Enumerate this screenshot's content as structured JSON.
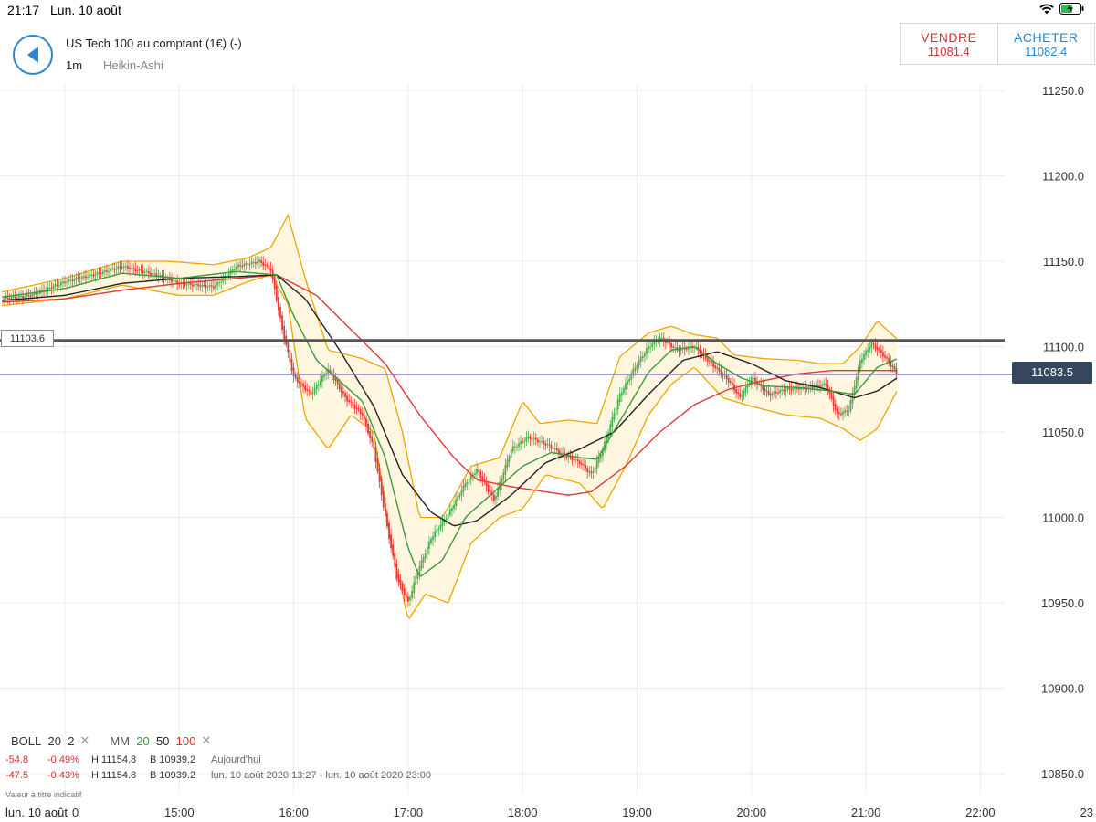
{
  "status": {
    "time": "21:17",
    "date": "Lun. 10 août",
    "icons": [
      "wifi-icon",
      "battery-charging-icon"
    ]
  },
  "header": {
    "back_icon": "triangle-left-icon",
    "instrument": "US Tech 100 au comptant (1€) (-)",
    "timeframe": "1m",
    "chart_type": "Heikin-Ashi"
  },
  "trade": {
    "sell_label": "VENDRE",
    "sell_price": "11081.4",
    "buy_label": "ACHETER",
    "buy_price": "11082.4"
  },
  "legend": {
    "boll_label": "BOLL",
    "boll_period": "20",
    "boll_dev": "2",
    "mm_label": "MM",
    "mm_20": "20",
    "mm_50": "50",
    "mm_100": "100",
    "remove_symbol": "✕"
  },
  "stats": [
    {
      "change": "-54.8",
      "pct": "-0.49%",
      "high": "H 11154.8",
      "low": "B 10939.2",
      "period": "Aujourd'hui"
    },
    {
      "change": "-47.5",
      "pct": "-0.43%",
      "high": "H 11154.8",
      "low": "B 10939.2",
      "period": "lun. 10 août 2020 13:27 - lun. 10 août 2020 23:00"
    }
  ],
  "disclaimer": "Valeur à titre indicatif",
  "date_label": "lun. 10 août",
  "colors": {
    "up": "#4caf50",
    "down": "#e53935",
    "mm20": "#3c9a3c",
    "mm50": "#222222",
    "mm100": "#e03a3a",
    "bollinger": "#f0a500",
    "band_fill": "#fff6e0",
    "level_line": "#555555",
    "current_line": "#8f8fc0",
    "price_tag": "#36465d",
    "accent": "#2a86d1"
  },
  "chart_data": {
    "type": "candlestick",
    "candle_style": "Heikin-Ashi",
    "x_ticks": [
      "0",
      "15:00",
      "16:00",
      "17:00",
      "18:00",
      "19:00",
      "20:00",
      "21:00",
      "22:00",
      "23"
    ],
    "y_ticks": [
      "11250.0",
      "11200.0",
      "11150.0",
      "11100.0",
      "11050.0",
      "11000.0",
      "10950.0",
      "10900.0",
      "10850.0"
    ],
    "ylim": [
      10835,
      11275
    ],
    "x_range_hours": [
      13.45,
      23.0
    ],
    "level_line": {
      "value": 11103.6,
      "label": "11103.6"
    },
    "current_price": {
      "value": 11083.5,
      "label": "11083.5"
    },
    "price_path": [
      [
        13.45,
        11128
      ],
      [
        13.7,
        11130
      ],
      [
        14.0,
        11138
      ],
      [
        14.3,
        11143
      ],
      [
        14.5,
        11147
      ],
      [
        14.8,
        11142
      ],
      [
        15.0,
        11137
      ],
      [
        15.3,
        11135
      ],
      [
        15.5,
        11147
      ],
      [
        15.7,
        11150
      ],
      [
        15.8,
        11145
      ],
      [
        15.9,
        11110
      ],
      [
        16.0,
        11082
      ],
      [
        16.15,
        11072
      ],
      [
        16.3,
        11087
      ],
      [
        16.45,
        11070
      ],
      [
        16.6,
        11060
      ],
      [
        16.7,
        11040
      ],
      [
        16.8,
        11000
      ],
      [
        16.9,
        10965
      ],
      [
        17.0,
        10950
      ],
      [
        17.08,
        10968
      ],
      [
        17.2,
        10988
      ],
      [
        17.35,
        11002
      ],
      [
        17.5,
        11020
      ],
      [
        17.6,
        11028
      ],
      [
        17.75,
        11010
      ],
      [
        17.9,
        11040
      ],
      [
        18.05,
        11047
      ],
      [
        18.2,
        11043
      ],
      [
        18.35,
        11037
      ],
      [
        18.5,
        11032
      ],
      [
        18.6,
        11025
      ],
      [
        18.7,
        11040
      ],
      [
        18.85,
        11072
      ],
      [
        19.0,
        11090
      ],
      [
        19.1,
        11100
      ],
      [
        19.2,
        11105
      ],
      [
        19.35,
        11098
      ],
      [
        19.5,
        11100
      ],
      [
        19.65,
        11090
      ],
      [
        19.8,
        11080
      ],
      [
        19.9,
        11070
      ],
      [
        20.0,
        11082
      ],
      [
        20.15,
        11072
      ],
      [
        20.3,
        11075
      ],
      [
        20.5,
        11076
      ],
      [
        20.65,
        11078
      ],
      [
        20.75,
        11060
      ],
      [
        20.85,
        11063
      ],
      [
        20.95,
        11092
      ],
      [
        21.05,
        11102
      ],
      [
        21.15,
        11095
      ],
      [
        21.28,
        11083.5
      ]
    ],
    "mm20_path": [
      [
        13.45,
        11129
      ],
      [
        14.0,
        11134
      ],
      [
        14.5,
        11143
      ],
      [
        15.0,
        11140
      ],
      [
        15.5,
        11144
      ],
      [
        15.85,
        11142
      ],
      [
        16.0,
        11118
      ],
      [
        16.2,
        11092
      ],
      [
        16.4,
        11080
      ],
      [
        16.6,
        11068
      ],
      [
        16.8,
        11035
      ],
      [
        17.0,
        10982
      ],
      [
        17.1,
        10965
      ],
      [
        17.3,
        10975
      ],
      [
        17.5,
        11000
      ],
      [
        17.75,
        11015
      ],
      [
        18.0,
        11030
      ],
      [
        18.25,
        11038
      ],
      [
        18.5,
        11035
      ],
      [
        18.65,
        11034
      ],
      [
        18.9,
        11062
      ],
      [
        19.1,
        11085
      ],
      [
        19.3,
        11098
      ],
      [
        19.5,
        11100
      ],
      [
        19.7,
        11090
      ],
      [
        19.9,
        11082
      ],
      [
        20.1,
        11077
      ],
      [
        20.4,
        11076
      ],
      [
        20.7,
        11074
      ],
      [
        20.9,
        11072
      ],
      [
        21.1,
        11088
      ],
      [
        21.28,
        11093
      ]
    ],
    "mm50_path": [
      [
        13.45,
        11127
      ],
      [
        14.0,
        11130
      ],
      [
        14.5,
        11137
      ],
      [
        15.0,
        11140
      ],
      [
        15.5,
        11141
      ],
      [
        15.85,
        11142
      ],
      [
        16.1,
        11128
      ],
      [
        16.4,
        11098
      ],
      [
        16.7,
        11065
      ],
      [
        16.95,
        11025
      ],
      [
        17.2,
        11003
      ],
      [
        17.4,
        10995
      ],
      [
        17.6,
        10998
      ],
      [
        17.9,
        11013
      ],
      [
        18.2,
        11032
      ],
      [
        18.5,
        11040
      ],
      [
        18.8,
        11050
      ],
      [
        19.1,
        11072
      ],
      [
        19.4,
        11092
      ],
      [
        19.7,
        11097
      ],
      [
        20.0,
        11090
      ],
      [
        20.3,
        11080
      ],
      [
        20.6,
        11076
      ],
      [
        20.9,
        11070
      ],
      [
        21.1,
        11074
      ],
      [
        21.28,
        11082
      ]
    ],
    "mm100_path": [
      [
        13.45,
        11126
      ],
      [
        14.0,
        11128
      ],
      [
        14.5,
        11133
      ],
      [
        15.0,
        11137
      ],
      [
        15.5,
        11140
      ],
      [
        15.85,
        11142
      ],
      [
        16.2,
        11130
      ],
      [
        16.5,
        11110
      ],
      [
        16.8,
        11090
      ],
      [
        17.1,
        11060
      ],
      [
        17.4,
        11035
      ],
      [
        17.6,
        11022
      ],
      [
        17.9,
        11018
      ],
      [
        18.2,
        11015
      ],
      [
        18.4,
        11013
      ],
      [
        18.6,
        11015
      ],
      [
        18.9,
        11030
      ],
      [
        19.2,
        11050
      ],
      [
        19.5,
        11066
      ],
      [
        19.8,
        11075
      ],
      [
        20.1,
        11080
      ],
      [
        20.4,
        11084
      ],
      [
        20.7,
        11086
      ],
      [
        21.0,
        11086
      ],
      [
        21.28,
        11086
      ]
    ],
    "boll_upper_path": [
      [
        13.45,
        11132
      ],
      [
        14.0,
        11140
      ],
      [
        14.5,
        11150
      ],
      [
        14.9,
        11150
      ],
      [
        15.3,
        11148
      ],
      [
        15.6,
        11152
      ],
      [
        15.8,
        11158
      ],
      [
        15.95,
        11177
      ],
      [
        16.1,
        11140
      ],
      [
        16.3,
        11098
      ],
      [
        16.6,
        11093
      ],
      [
        16.8,
        11087
      ],
      [
        16.95,
        11050
      ],
      [
        17.1,
        11000
      ],
      [
        17.3,
        11000
      ],
      [
        17.55,
        11030
      ],
      [
        17.8,
        11035
      ],
      [
        18.0,
        11068
      ],
      [
        18.15,
        11055
      ],
      [
        18.4,
        11057
      ],
      [
        18.65,
        11055
      ],
      [
        18.85,
        11094
      ],
      [
        19.1,
        11108
      ],
      [
        19.3,
        11112
      ],
      [
        19.5,
        11107
      ],
      [
        19.7,
        11105
      ],
      [
        19.85,
        11095
      ],
      [
        20.1,
        11093
      ],
      [
        20.4,
        11092
      ],
      [
        20.6,
        11090
      ],
      [
        20.8,
        11090
      ],
      [
        20.95,
        11100
      ],
      [
        21.1,
        11115
      ],
      [
        21.28,
        11104
      ]
    ],
    "boll_lower_path": [
      [
        13.45,
        11124
      ],
      [
        14.0,
        11128
      ],
      [
        14.5,
        11136
      ],
      [
        15.0,
        11130
      ],
      [
        15.3,
        11130
      ],
      [
        15.6,
        11138
      ],
      [
        15.8,
        11142
      ],
      [
        15.95,
        11125
      ],
      [
        16.1,
        11058
      ],
      [
        16.3,
        11040
      ],
      [
        16.5,
        11060
      ],
      [
        16.7,
        11050
      ],
      [
        16.85,
        10985
      ],
      [
        17.0,
        10940
      ],
      [
        17.15,
        10955
      ],
      [
        17.35,
        10950
      ],
      [
        17.55,
        10985
      ],
      [
        17.8,
        11000
      ],
      [
        18.0,
        11005
      ],
      [
        18.2,
        11025
      ],
      [
        18.5,
        11020
      ],
      [
        18.7,
        11005
      ],
      [
        18.9,
        11030
      ],
      [
        19.1,
        11060
      ],
      [
        19.3,
        11078
      ],
      [
        19.5,
        11088
      ],
      [
        19.75,
        11070
      ],
      [
        20.0,
        11065
      ],
      [
        20.3,
        11060
      ],
      [
        20.6,
        11058
      ],
      [
        20.8,
        11052
      ],
      [
        20.95,
        11045
      ],
      [
        21.1,
        11052
      ],
      [
        21.28,
        11075
      ]
    ]
  }
}
